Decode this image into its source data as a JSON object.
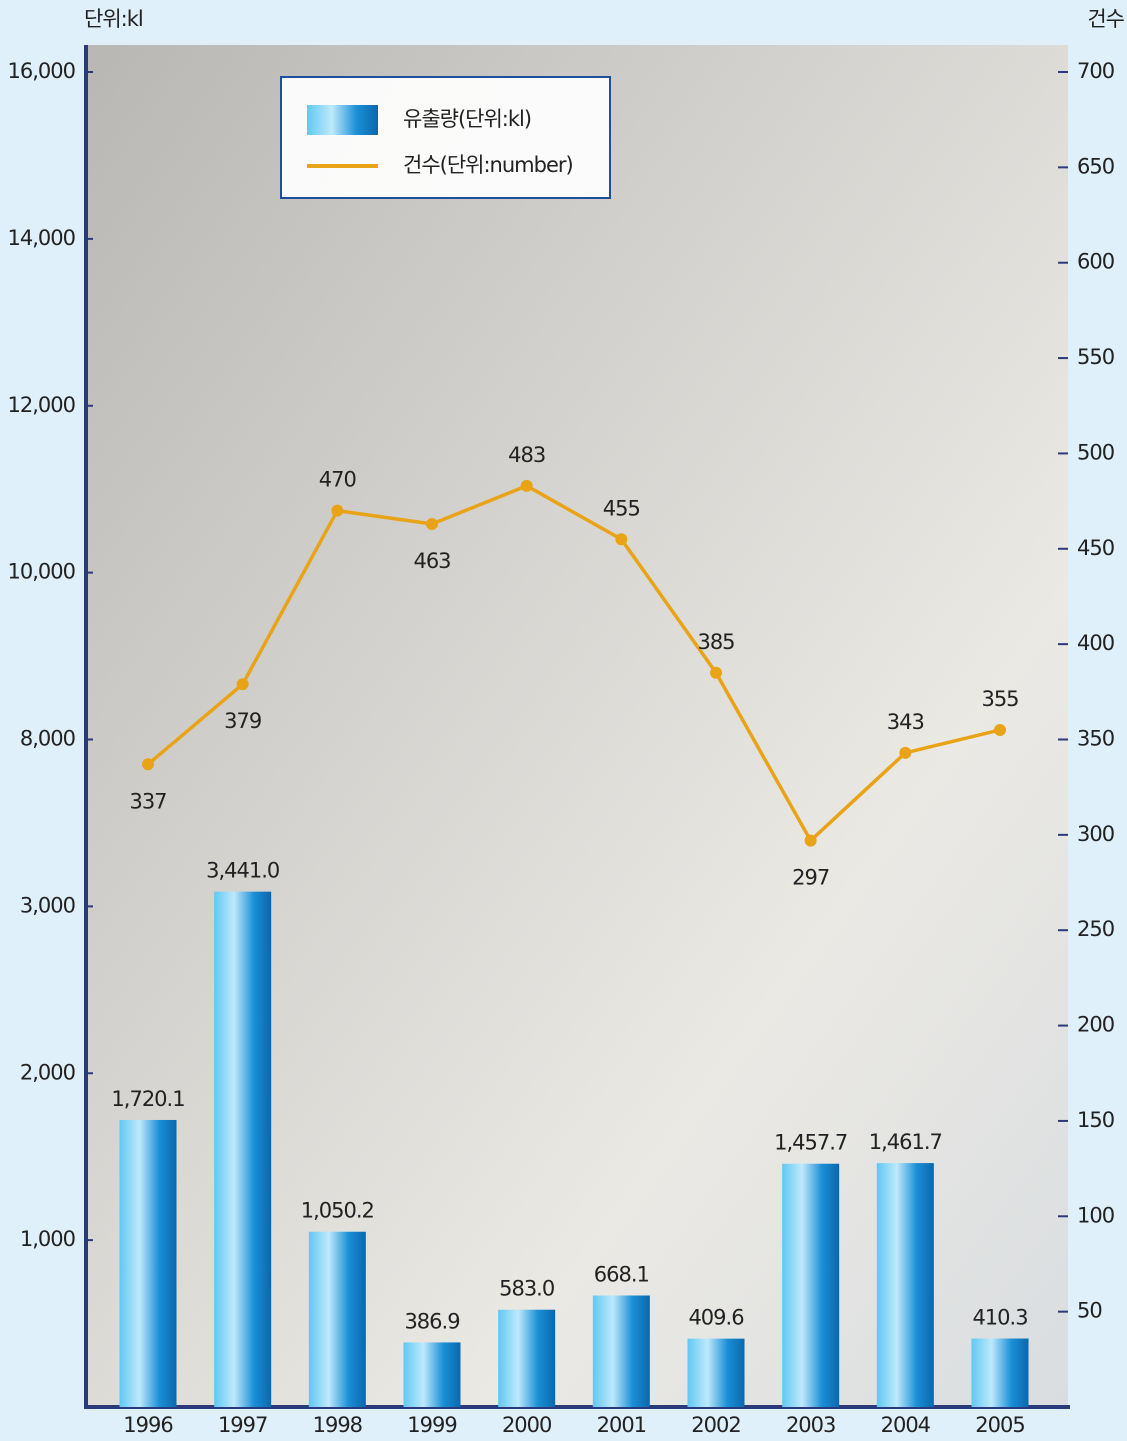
{
  "chart_data": {
    "type": "bar-line",
    "ylabel": "단위:kl",
    "y2label": "건수",
    "categories": [
      "1996",
      "1997",
      "1998",
      "1999",
      "2000",
      "2001",
      "2002",
      "2003",
      "2004",
      "2005"
    ],
    "series": [
      {
        "name": "유출량(단위:kl)",
        "type": "bar",
        "color": "#1a8fd6",
        "values": [
          1720.1,
          3441.0,
          1050.2,
          386.9,
          583.0,
          668.1,
          409.6,
          1457.7,
          1461.7,
          410.3
        ],
        "value_labels": [
          "1,720.1",
          "3,441.0",
          "1,050.2",
          "386.9",
          "583.0",
          "668.1",
          "409.6",
          "1,457.7",
          "1,461.7",
          "410.3"
        ]
      },
      {
        "name": "건수(단위:number)",
        "type": "line",
        "axis": "y2",
        "color": "#e8a317",
        "values": [
          337,
          379,
          470,
          463,
          483,
          455,
          385,
          297,
          343,
          355
        ]
      }
    ],
    "ylim": [
      0,
      16000
    ],
    "yscale": "piecewise",
    "yticks": [
      {
        "value": 1000,
        "label": "1,000"
      },
      {
        "value": 2000,
        "label": "2,000"
      },
      {
        "value": 3000,
        "label": "3,000"
      },
      {
        "value": 8000,
        "label": "8,000"
      },
      {
        "value": 10000,
        "label": "10,000"
      },
      {
        "value": 12000,
        "label": "12,000"
      },
      {
        "value": 14000,
        "label": "14,000"
      },
      {
        "value": 16000,
        "label": "16,000"
      }
    ],
    "y2lim": [
      0,
      700
    ],
    "y2ticks": [
      50,
      100,
      150,
      200,
      250,
      300,
      350,
      400,
      450,
      500,
      550,
      600,
      650,
      700
    ]
  }
}
